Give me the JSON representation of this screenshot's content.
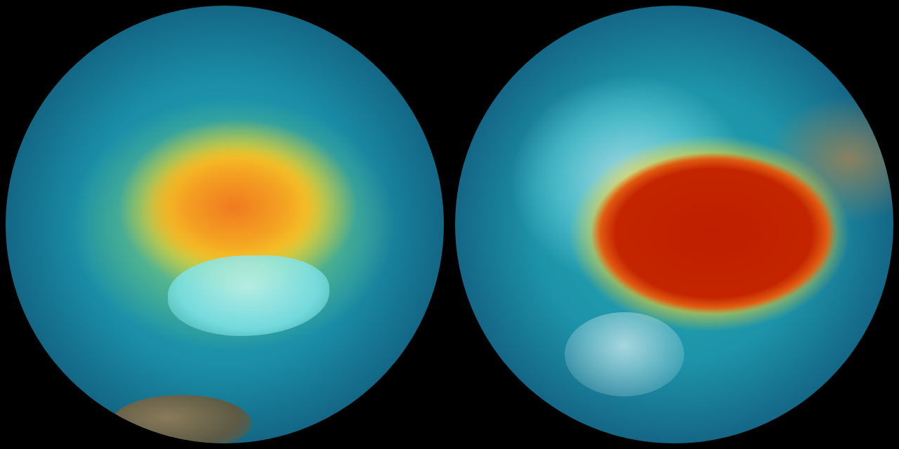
{
  "scene": {
    "background": "#000000",
    "globes": [
      {
        "label": "",
        "hot_color": "#f07a20",
        "mid_color": "#f5d027",
        "ocean_color": "#1b90a8"
      },
      {
        "label": "",
        "hot_color": "#c01e00",
        "mid_color": "#f5d228",
        "ocean_color": "#1d93a8"
      }
    ]
  }
}
